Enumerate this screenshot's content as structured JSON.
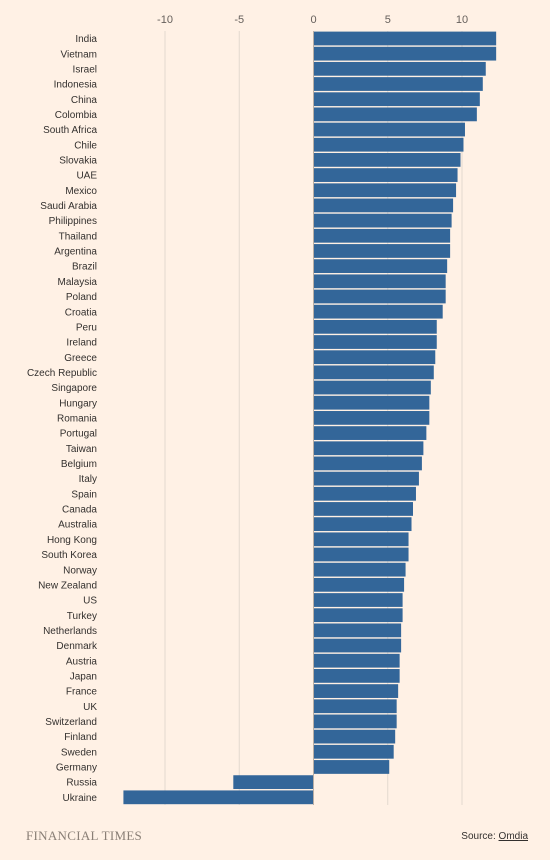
{
  "brand": "FINANCIAL TIMES",
  "source": {
    "prefix": "Source: ",
    "name": "Omdia"
  },
  "chart_data": {
    "type": "bar",
    "orientation": "horizontal",
    "xlim": [
      -13.5,
      13
    ],
    "xticks": [
      -10,
      -5,
      0,
      5,
      10
    ],
    "grid": true,
    "bar_color": "#336699",
    "categories": [
      "India",
      "Vietnam",
      "Israel",
      "Indonesia",
      "China",
      "Colombia",
      "South Africa",
      "Chile",
      "Slovakia",
      "UAE",
      "Mexico",
      "Saudi Arabia",
      "Philippines",
      "Thailand",
      "Argentina",
      "Brazil",
      "Malaysia",
      "Poland",
      "Croatia",
      "Peru",
      "Ireland",
      "Greece",
      "Czech Republic",
      "Singapore",
      "Hungary",
      "Romania",
      "Portugal",
      "Taiwan",
      "Belgium",
      "Italy",
      "Spain",
      "Canada",
      "Australia",
      "Hong Kong",
      "South Korea",
      "Norway",
      "New Zealand",
      "US",
      "Turkey",
      "Netherlands",
      "Denmark",
      "Austria",
      "Japan",
      "France",
      "UK",
      "Switzerland",
      "Finland",
      "Sweden",
      "Germany",
      "Russia",
      "Ukraine"
    ],
    "values": [
      12.3,
      12.3,
      11.6,
      11.4,
      11.2,
      11.0,
      10.2,
      10.1,
      9.9,
      9.7,
      9.6,
      9.4,
      9.3,
      9.2,
      9.2,
      9.0,
      8.9,
      8.9,
      8.7,
      8.3,
      8.3,
      8.2,
      8.1,
      7.9,
      7.8,
      7.8,
      7.6,
      7.4,
      7.3,
      7.1,
      6.9,
      6.7,
      6.6,
      6.4,
      6.4,
      6.2,
      6.1,
      6.0,
      6.0,
      5.9,
      5.9,
      5.8,
      5.8,
      5.7,
      5.6,
      5.6,
      5.5,
      5.4,
      5.1,
      -5.4,
      -12.8
    ]
  }
}
